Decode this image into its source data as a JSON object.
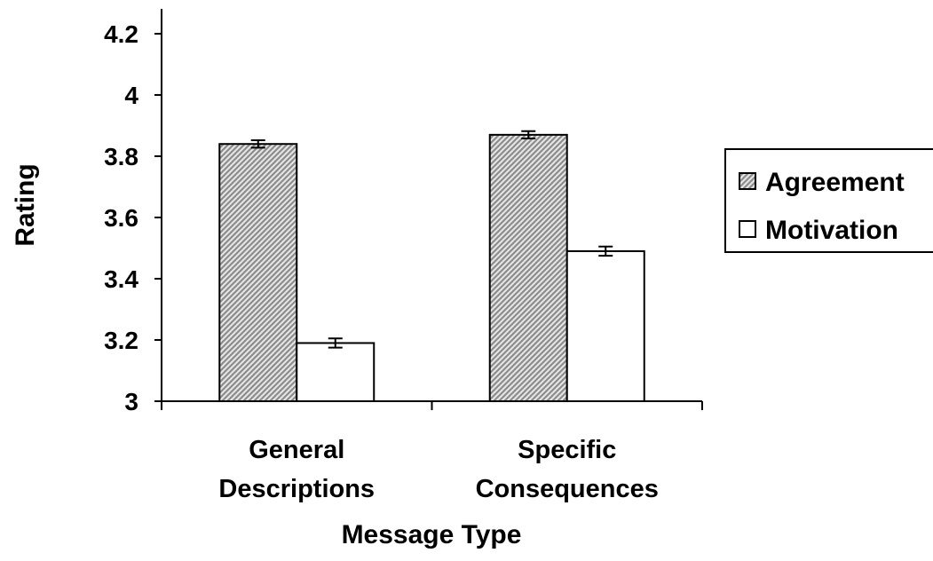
{
  "chart_data": {
    "type": "bar",
    "categories": [
      [
        "General",
        "Descriptions"
      ],
      [
        "Specific",
        "Consequences"
      ]
    ],
    "series": [
      {
        "name": "Agreement",
        "values": [
          3.84,
          3.87
        ],
        "errors": [
          0.012,
          0.012
        ],
        "fill": "hatched",
        "color": "#999999"
      },
      {
        "name": "Motivation",
        "values": [
          3.19,
          3.49
        ],
        "errors": [
          0.015,
          0.015
        ],
        "fill": "solid",
        "color": "#ffffff"
      }
    ],
    "xlabel": "Message Type",
    "ylabel": "Rating",
    "ylim": [
      3,
      4.2
    ],
    "yticks": [
      3,
      3.2,
      3.4,
      3.6,
      3.8,
      4,
      4.2
    ],
    "ytick_labels": [
      "3",
      "3.2",
      "3.4",
      "3.6",
      "3.8",
      "4",
      "4.2"
    ],
    "grid": false,
    "legend_position": "right"
  }
}
